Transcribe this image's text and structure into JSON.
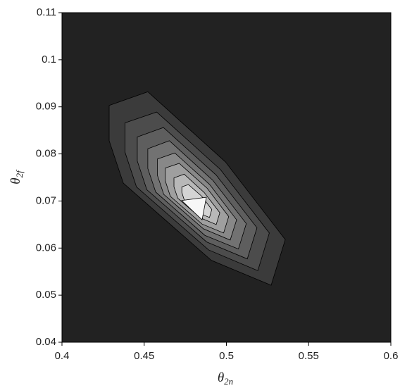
{
  "chart_data": {
    "type": "contour",
    "xlabel": {
      "text": "θ",
      "subscript": "2n"
    },
    "ylabel": {
      "text": "θ",
      "subscript": "2f"
    },
    "xlim": [
      0.4,
      0.6
    ],
    "xticks": [
      0.4,
      0.45,
      0.5,
      0.55,
      0.6
    ],
    "ylim": [
      0.04,
      0.11
    ],
    "yticks": [
      0.04,
      0.05,
      0.06,
      0.07,
      0.08,
      0.09,
      0.1,
      0.11
    ],
    "background": "#222222",
    "series": [
      {
        "color": "#3b3b3b",
        "x": [
          0.4287,
          0.4522,
          0.4994,
          0.5358,
          0.5272,
          0.4908,
          0.4373,
          0.4287
        ],
        "y": [
          0.0903,
          0.0932,
          0.0783,
          0.0618,
          0.0521,
          0.0574,
          0.0738,
          0.0828
        ]
      },
      {
        "color": "#4c4c4c",
        "x": [
          0.4383,
          0.4576,
          0.4963,
          0.5261,
          0.5191,
          0.4892,
          0.4453,
          0.4383
        ],
        "y": [
          0.0866,
          0.0889,
          0.0767,
          0.0632,
          0.0552,
          0.0596,
          0.073,
          0.0804
        ]
      },
      {
        "color": "#5e5e5e",
        "x": [
          0.4458,
          0.4617,
          0.4938,
          0.5186,
          0.5127,
          0.488,
          0.4516,
          0.4458
        ],
        "y": [
          0.0836,
          0.0856,
          0.0755,
          0.0643,
          0.0577,
          0.0613,
          0.0724,
          0.0785
        ]
      },
      {
        "color": "#727272",
        "x": [
          0.4522,
          0.4653,
          0.4917,
          0.5121,
          0.5073,
          0.4869,
          0.457,
          0.4522
        ],
        "y": [
          0.0811,
          0.0828,
          0.0744,
          0.0652,
          0.0598,
          0.0627,
          0.0719,
          0.0769
        ]
      },
      {
        "color": "#888888",
        "x": [
          0.458,
          0.4686,
          0.4898,
          0.5062,
          0.5023,
          0.486,
          0.4619,
          0.458
        ],
        "y": [
          0.0789,
          0.0802,
          0.0735,
          0.066,
          0.0617,
          0.0641,
          0.0714,
          0.0755
        ]
      },
      {
        "color": "#9f9f9f",
        "x": [
          0.4628,
          0.4713,
          0.4883,
          0.5014,
          0.4983,
          0.4852,
          0.4659,
          0.4628
        ],
        "y": [
          0.077,
          0.078,
          0.0727,
          0.0667,
          0.0632,
          0.0651,
          0.071,
          0.0743
        ]
      },
      {
        "color": "#b8b8b8",
        "x": [
          0.4681,
          0.4743,
          0.4865,
          0.496,
          0.4938,
          0.4843,
          0.4704,
          0.4681
        ],
        "y": [
          0.0749,
          0.0757,
          0.0718,
          0.0675,
          0.065,
          0.0664,
          0.0706,
          0.073
        ]
      },
      {
        "color": "#d4d4d4",
        "x": [
          0.4729,
          0.4769,
          0.485,
          0.4911,
          0.4897,
          0.4835,
          0.4744,
          0.4729
        ],
        "y": [
          0.073,
          0.0735,
          0.071,
          0.0682,
          0.0665,
          0.0674,
          0.0702,
          0.0718
        ]
      },
      {
        "color": "#f7f7f7",
        "x": [
          0.4728,
          0.4878,
          0.4852
        ],
        "y": [
          0.0701,
          0.0708,
          0.066
        ]
      }
    ]
  }
}
